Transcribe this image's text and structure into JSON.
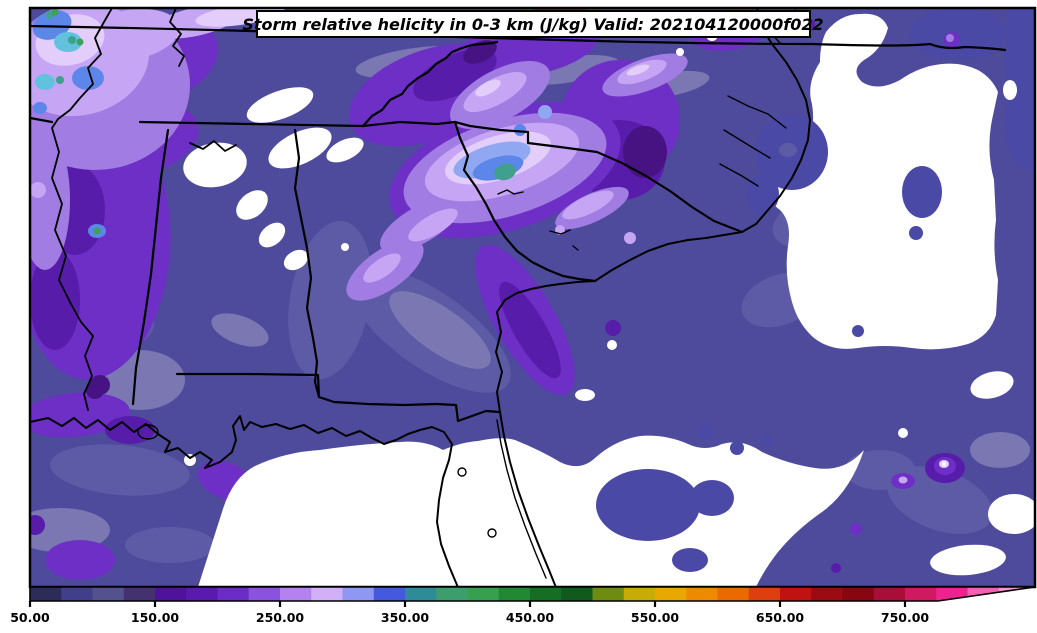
{
  "title": {
    "text": "Storm relative helicity in 0-3 km (J/kg) Valid: 202104120000f022"
  },
  "chart_data": {
    "type": "heatmap",
    "subtype": "filled-contour-weather-map",
    "title": "Storm relative helicity in 0-3 km (J/kg) Valid: 202104120000f022",
    "variable": "Storm relative helicity, 0-3 km layer",
    "units": "J/kg",
    "valid_time": "202104120000f022",
    "region": "Southeastern United States: Tennessee, Mississippi, Alabama, Georgia, South Carolina, North Carolina, Florida, Louisiana coast, Gulf of Mexico and western Atlantic",
    "colorbar": {
      "min": 50,
      "max": 850,
      "interval": 25,
      "extend": "max-arrow",
      "tick_values": [
        50,
        150,
        250,
        350,
        450,
        550,
        650,
        750
      ],
      "tick_labels": [
        "50.00",
        "150.00",
        "250.00",
        "350.00",
        "450.00",
        "550.00",
        "650.00",
        "750.00"
      ],
      "segment_colors": [
        "#2d2c59",
        "#413f8c",
        "#54528e",
        "#433170",
        "#4f129b",
        "#5a1ab0",
        "#6b2cc7",
        "#8a52df",
        "#b382ef",
        "#d2b0f8",
        "#8e97f2",
        "#4559e0",
        "#2e8b98",
        "#3e9d6d",
        "#37a04e",
        "#238833",
        "#156e23",
        "#0f5a1c",
        "#6f8c12",
        "#c7ab07",
        "#e8a800",
        "#ed8a00",
        "#ea6a00",
        "#dd3f0e",
        "#c01311",
        "#9c0b12",
        "#870610",
        "#a80f38",
        "#cf1a62",
        "#ee2391",
        "#f55fb2",
        "#f795cb"
      ],
      "extend_color": "#fbc0de",
      "arrow_tip_color": "#fdd2e9"
    },
    "features": [
      {
        "description": "Broad 100-150 J/kg slate-blue field covering most land areas and nearshore waters",
        "approx_value_range": [
          100,
          150
        ]
      },
      {
        "description": "150-250 J/kg purple band over Mississippi, west Alabama, north Georgia and the southern Appalachians, and along the Georgia coast",
        "approx_value_range": [
          150,
          250
        ]
      },
      {
        "description": "Local maximum over central South Carolina: lavender to light-blue bullseye with small teal core",
        "approx_value_range": [
          250,
          400
        ]
      },
      {
        "description": "Secondary maximum in northwest map corner with lavender, light-blue and small green specks",
        "approx_value_range": [
          250,
          450
        ]
      },
      {
        "description": "Values below 50 J/kg shown white over the Gulf of Mexico, Florida peninsula and much of the western Atlantic",
        "approx_value_range": [
          0,
          50
        ]
      },
      {
        "description": "Small intense violet bullseyes offshore in the far southeast corner of the map",
        "approx_value_range": [
          200,
          300
        ]
      }
    ],
    "grid": false,
    "legend_position": "bottom-colorbar"
  },
  "colors": {
    "white": "#ffffff",
    "base": "#4e4b9c",
    "oceanBlob": "#4a49a6",
    "slateLight": "#5e5ba6",
    "slateGray": "#7b77b3",
    "purpleBright": "#6d2fc5",
    "purpleDeep": "#581cab",
    "purpleDark": "#471281",
    "lightPurple": "#a17ce2",
    "lavender": "#c5a5f4",
    "paleLavender": "#e2cdfb",
    "periwinkle": "#90a7f2",
    "blue": "#5c86ea",
    "cyan": "#62c2dd",
    "teal": "#3fa08d",
    "green": "#3fa057",
    "frame": "#000000"
  }
}
